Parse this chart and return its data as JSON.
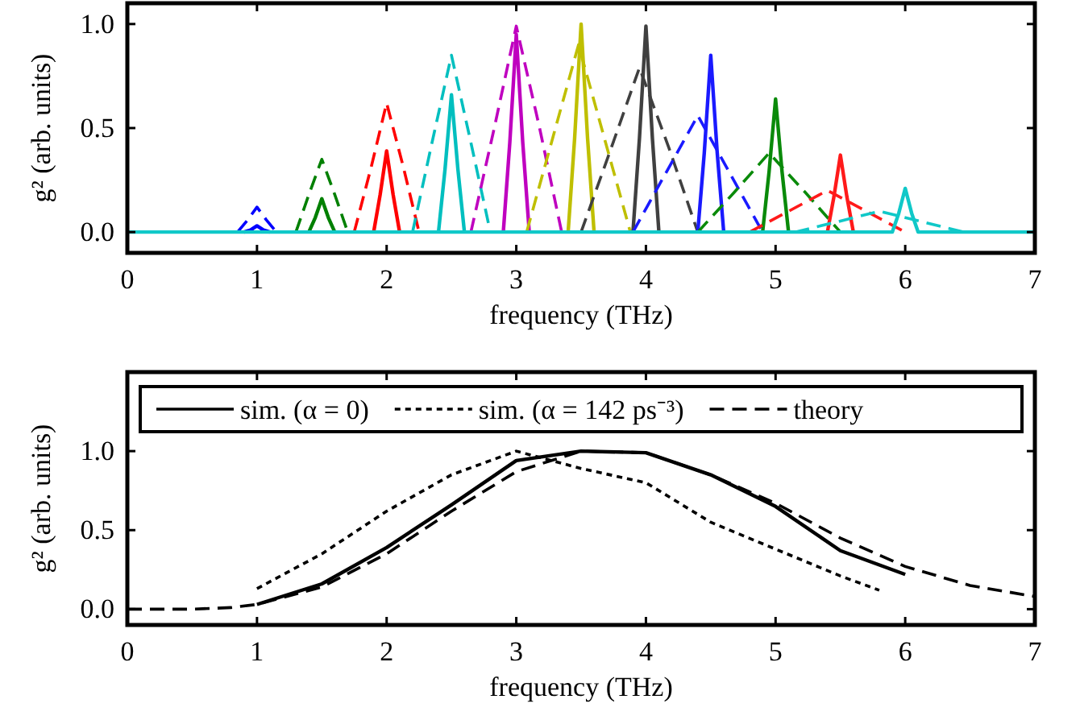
{
  "chart_data": [
    {
      "type": "line",
      "xlabel": "frequency (THz)",
      "ylabel": "g² (arb. units)",
      "xlim": [
        0,
        7
      ],
      "xticks": [
        0,
        1,
        2,
        3,
        4,
        5,
        6,
        7
      ],
      "ylim": [
        -0.1,
        1.1
      ],
      "yticks": [
        {
          "value": 0,
          "label": "0.0"
        },
        {
          "value": 0.5,
          "label": "0.5"
        },
        {
          "value": 1,
          "label": "1.0"
        }
      ],
      "series": [
        {
          "color": "#0000ff",
          "line_style": "dashed",
          "x": [
            0.85,
            0.93,
            1,
            1.07,
            1.15
          ],
          "values": [
            0,
            0.06,
            0.12,
            0.06,
            0
          ]
        },
        {
          "color": "#0000ff",
          "line_style": "solid",
          "x": [
            0.9,
            0.95,
            1,
            1.05,
            1.1
          ],
          "values": [
            0,
            0.01,
            0.03,
            0.01,
            0
          ]
        },
        {
          "color": "#008000",
          "line_style": "dashed",
          "x": [
            1.3,
            1.4,
            1.5,
            1.6,
            1.7
          ],
          "values": [
            0,
            0.18,
            0.35,
            0.18,
            0
          ]
        },
        {
          "color": "#008000",
          "line_style": "solid",
          "x": [
            1.4,
            1.45,
            1.5,
            1.55,
            1.6
          ],
          "values": [
            0,
            0.07,
            0.16,
            0.07,
            0
          ]
        },
        {
          "color": "#ff0000",
          "line_style": "dashed",
          "x": [
            1.75,
            1.88,
            2,
            2.13,
            2.25
          ],
          "values": [
            0,
            0.31,
            0.62,
            0.31,
            0
          ]
        },
        {
          "color": "#ff0000",
          "line_style": "solid",
          "x": [
            1.9,
            1.95,
            2,
            2.05,
            2.1
          ],
          "values": [
            0,
            0.18,
            0.39,
            0.18,
            0
          ]
        },
        {
          "color": "#00bfbf",
          "line_style": "dashed",
          "x": [
            2.2,
            2.35,
            2.5,
            2.65,
            2.8
          ],
          "values": [
            0,
            0.43,
            0.85,
            0.43,
            0
          ]
        },
        {
          "color": "#00bfbf",
          "line_style": "solid",
          "x": [
            2.4,
            2.45,
            2.5,
            2.55,
            2.6
          ],
          "values": [
            0,
            0.3,
            0.66,
            0.3,
            0
          ]
        },
        {
          "color": "#bf00bf",
          "line_style": "dashed",
          "x": [
            2.65,
            2.83,
            3,
            3.18,
            3.35
          ],
          "values": [
            0,
            0.5,
            0.99,
            0.5,
            0
          ]
        },
        {
          "color": "#bf00bf",
          "line_style": "solid",
          "x": [
            2.9,
            2.95,
            3,
            3.05,
            3.1
          ],
          "values": [
            0,
            0.43,
            0.95,
            0.43,
            0
          ]
        },
        {
          "color": "#bfbf00",
          "line_style": "dashed",
          "x": [
            3.08,
            3.28,
            3.48,
            3.68,
            3.88
          ],
          "values": [
            0,
            0.45,
            0.9,
            0.45,
            0
          ]
        },
        {
          "color": "#bfbf00",
          "line_style": "solid",
          "x": [
            3.4,
            3.45,
            3.5,
            3.55,
            3.6
          ],
          "values": [
            0,
            0.45,
            1,
            0.45,
            0
          ]
        },
        {
          "color": "#404040",
          "line_style": "dashed",
          "x": [
            3.5,
            3.73,
            3.95,
            4.18,
            4.4
          ],
          "values": [
            0,
            0.4,
            0.79,
            0.4,
            0
          ]
        },
        {
          "color": "#404040",
          "line_style": "solid",
          "x": [
            3.9,
            3.95,
            4,
            4.05,
            4.1
          ],
          "values": [
            0,
            0.45,
            0.99,
            0.45,
            0
          ]
        },
        {
          "color": "#1a1aff",
          "line_style": "dashed",
          "x": [
            3.9,
            4.15,
            4.4,
            4.65,
            4.9
          ],
          "values": [
            0,
            0.28,
            0.56,
            0.28,
            0
          ]
        },
        {
          "color": "#1a1aff",
          "line_style": "solid",
          "x": [
            4.4,
            4.45,
            4.5,
            4.55,
            4.6
          ],
          "values": [
            0,
            0.38,
            0.85,
            0.38,
            0
          ]
        },
        {
          "color": "#0a8a0a",
          "line_style": "dashed",
          "x": [
            4.4,
            4.68,
            4.95,
            5.23,
            5.5
          ],
          "values": [
            0,
            0.19,
            0.38,
            0.19,
            0
          ]
        },
        {
          "color": "#0a8a0a",
          "line_style": "solid",
          "x": [
            4.9,
            4.95,
            5,
            5.05,
            5.1
          ],
          "values": [
            0,
            0.29,
            0.64,
            0.29,
            0
          ]
        },
        {
          "color": "#ff1a1a",
          "line_style": "dashed",
          "x": [
            4.8,
            5.1,
            5.4,
            5.7,
            6
          ],
          "values": [
            0,
            0.1,
            0.2,
            0.1,
            0
          ]
        },
        {
          "color": "#ff1a1a",
          "line_style": "solid",
          "x": [
            5.4,
            5.45,
            5.5,
            5.55,
            5.6
          ],
          "values": [
            0,
            0.17,
            0.37,
            0.17,
            0
          ]
        },
        {
          "color": "#10c8c8",
          "line_style": "dashed",
          "x": [
            5.15,
            5.48,
            5.8,
            6.13,
            6.45
          ],
          "values": [
            0,
            0.05,
            0.1,
            0.05,
            0
          ]
        },
        {
          "color": "#10c8c8",
          "line_style": "solid",
          "x": [
            0,
            5.9,
            5.95,
            6,
            6.05,
            6.1,
            7
          ],
          "values": [
            0,
            0,
            0.09,
            0.21,
            0.09,
            0,
            0
          ]
        }
      ]
    },
    {
      "type": "line",
      "xlabel": "frequency (THz)",
      "ylabel": "g² (arb. units)",
      "xlim": [
        0,
        7
      ],
      "xticks": [
        0,
        1,
        2,
        3,
        4,
        5,
        6,
        7
      ],
      "ylim": [
        -0.1,
        1.5
      ],
      "yticks": [
        {
          "value": 0,
          "label": "0.0"
        },
        {
          "value": 0.5,
          "label": "0.5"
        },
        {
          "value": 1,
          "label": "1.0"
        }
      ],
      "legend": "top",
      "series": [
        {
          "name": "sim. (α = 0)",
          "color": "#000000",
          "line_style": "solid",
          "x": [
            1,
            1.5,
            2,
            2.5,
            3,
            3.5,
            4,
            4.5,
            5,
            5.5,
            6
          ],
          "values": [
            0.03,
            0.16,
            0.39,
            0.66,
            0.94,
            1,
            0.99,
            0.85,
            0.65,
            0.37,
            0.22
          ]
        },
        {
          "name": "sim. (α = 142 ps⁻³)",
          "color": "#000000",
          "line_style": "dotted",
          "x": [
            1,
            1.5,
            2,
            2.5,
            3,
            3.5,
            4,
            4.5,
            5,
            5.5,
            5.8
          ],
          "values": [
            0.13,
            0.35,
            0.62,
            0.85,
            1,
            0.89,
            0.8,
            0.55,
            0.38,
            0.21,
            0.12
          ]
        },
        {
          "name": "theory",
          "color": "#000000",
          "line_style": "dashed",
          "x": [
            0,
            0.5,
            0.8,
            1,
            1.5,
            2,
            2.5,
            3,
            3.5,
            4,
            4.5,
            5,
            5.5,
            6,
            6.5,
            7
          ],
          "values": [
            0,
            0,
            0.01,
            0.03,
            0.14,
            0.35,
            0.62,
            0.87,
            1,
            0.99,
            0.85,
            0.67,
            0.45,
            0.27,
            0.15,
            0.08
          ]
        }
      ]
    }
  ]
}
